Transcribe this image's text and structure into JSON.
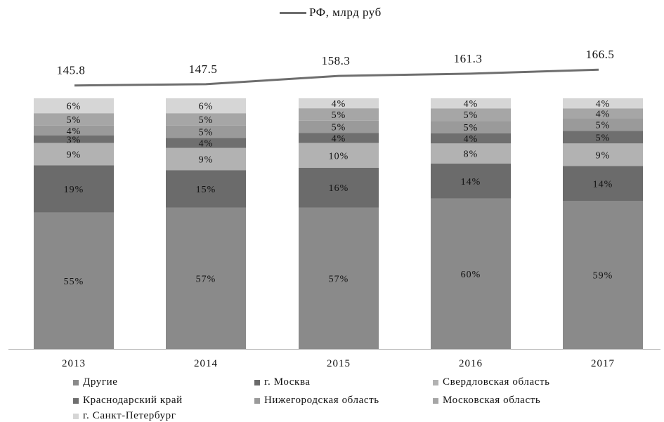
{
  "chart_data": {
    "type": "bar",
    "stacked": true,
    "categories": [
      "2013",
      "2014",
      "2015",
      "2016",
      "2017"
    ],
    "series": [
      {
        "name": "Другие",
        "color": "#8a8a8a",
        "values": [
          55,
          57,
          57,
          60,
          59
        ],
        "labels": [
          "55%",
          "57%",
          "57%",
          "60%",
          "59%"
        ]
      },
      {
        "name": "г. Москва",
        "color": "#6b6b6b",
        "values": [
          19,
          15,
          16,
          14,
          14
        ],
        "labels": [
          "19%",
          "15%",
          "16%",
          "14%",
          "14%"
        ]
      },
      {
        "name": "Свердловская область",
        "color": "#b2b2b2",
        "values": [
          9,
          9,
          10,
          8,
          9
        ],
        "labels": [
          "9%",
          "9%",
          "10%",
          "8%",
          "9%"
        ]
      },
      {
        "name": "Краснодарский край",
        "color": "#6f6f6f",
        "values": [
          3,
          4,
          4,
          4,
          5
        ],
        "labels": [
          "3%",
          "4%",
          "4%",
          "4%",
          "5%"
        ]
      },
      {
        "name": "Нижегородская область",
        "color": "#9a9a9a",
        "values": [
          4,
          5,
          5,
          5,
          5
        ],
        "labels": [
          "4%",
          "5%",
          "5%",
          "5%",
          "5%"
        ]
      },
      {
        "name": "Московская область",
        "color": "#a6a6a6",
        "values": [
          5,
          5,
          5,
          5,
          4
        ],
        "labels": [
          "5%",
          "5%",
          "5%",
          "5%",
          "4%"
        ]
      },
      {
        "name": "г. Санкт-Петербург",
        "color": "#d6d6d6",
        "values": [
          6,
          6,
          4,
          4,
          4
        ],
        "labels": [
          "6%",
          "6%",
          "4%",
          "4%",
          "4%"
        ]
      }
    ],
    "line": {
      "name": "РФ, млрд руб",
      "color": "#6e6e6e",
      "values": [
        145.8,
        147.5,
        158.3,
        161.3,
        166.5
      ],
      "labels": [
        "145.8",
        "147.5",
        "158.3",
        "161.3",
        "166.5"
      ]
    },
    "grid": false,
    "legend_position": "bottom"
  }
}
